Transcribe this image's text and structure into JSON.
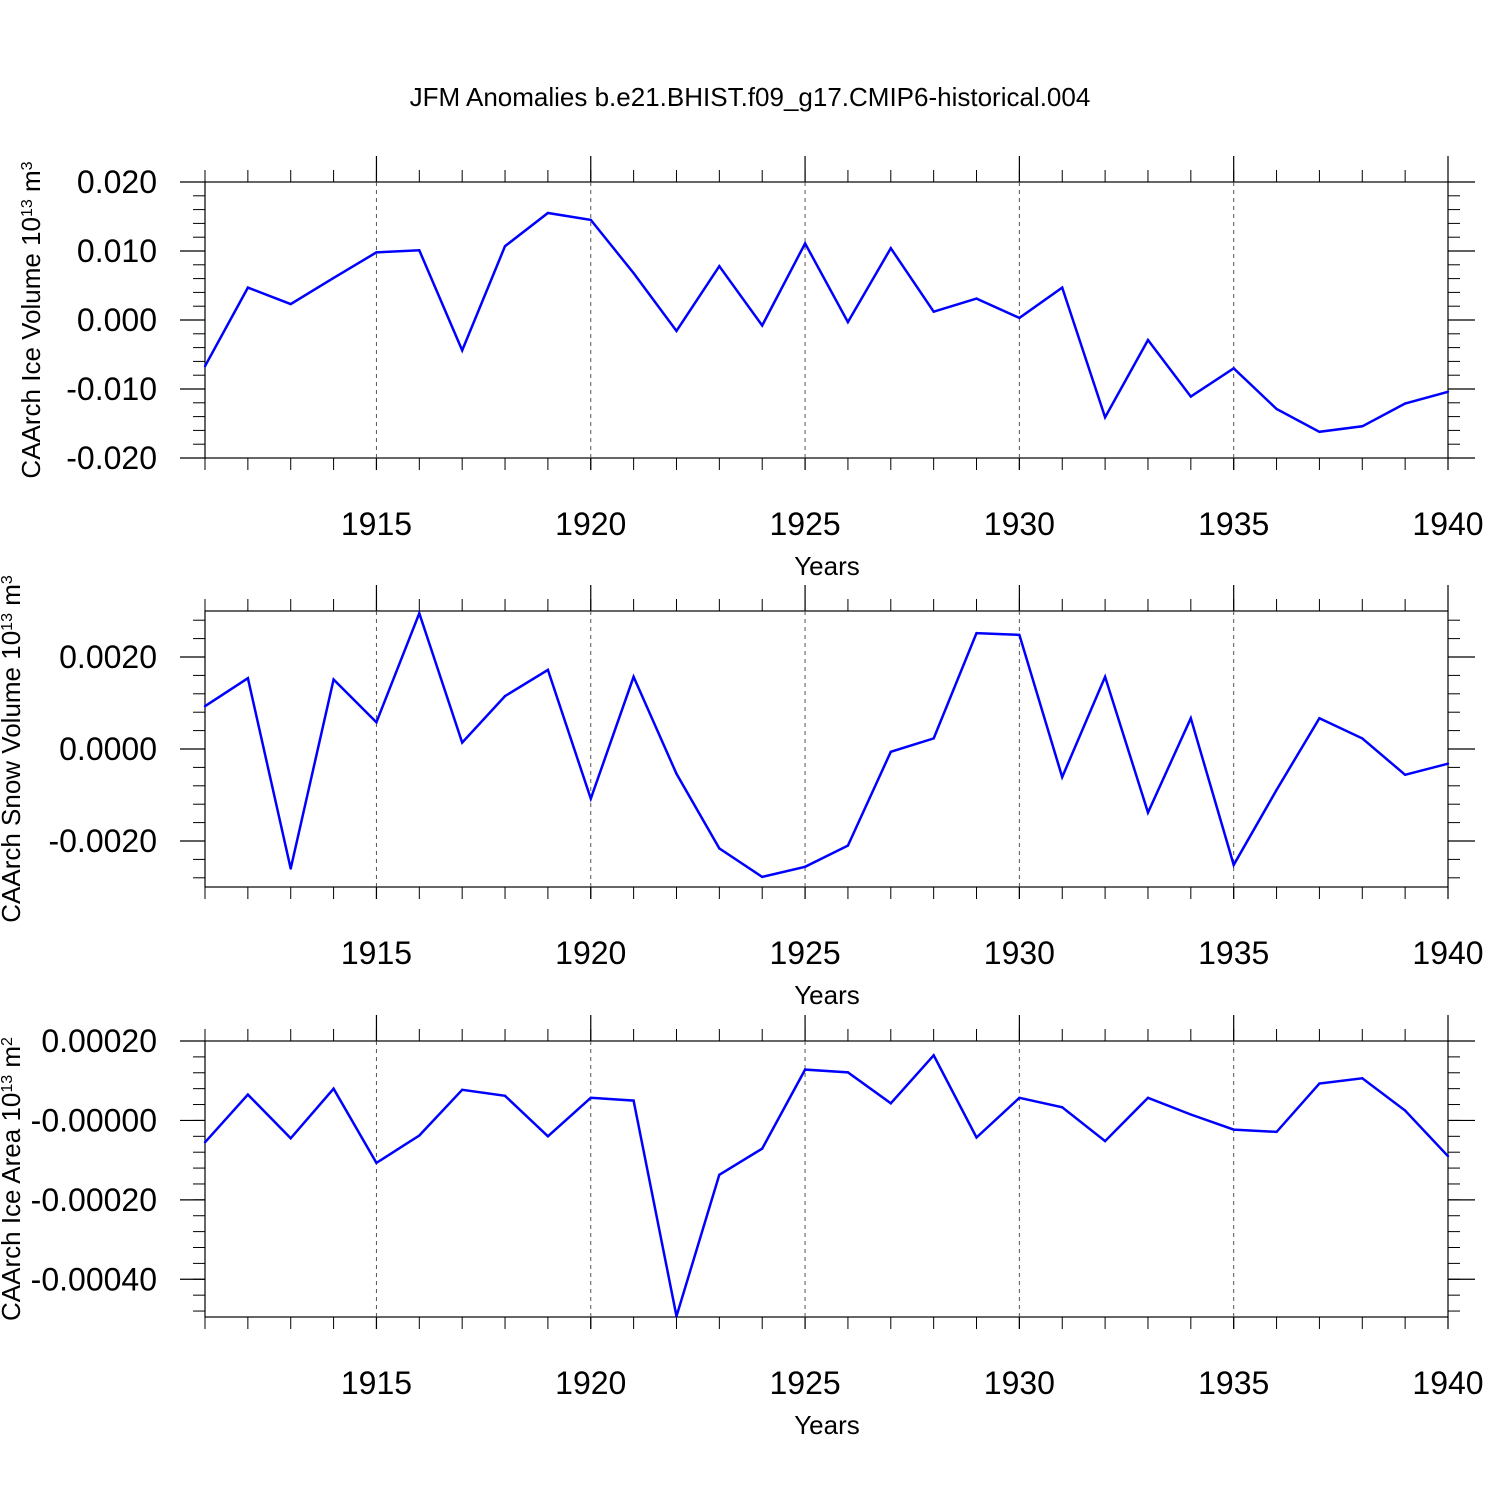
{
  "figure_title": "JFM Anomalies b.e21.BHIST.f09_g17.CMIP6-historical.004",
  "line_color": "#0000ff",
  "chart_data": [
    {
      "type": "line",
      "title": "JFM Anomalies b.e21.BHIST.f09_g17.CMIP6-historical.004",
      "xlabel": "Years",
      "ylabel": "CAArch Ice Volume 10¹³ m³",
      "xlim": [
        1911,
        1940
      ],
      "ylim": [
        -0.02,
        0.02
      ],
      "x_ticks": [
        1915,
        1920,
        1925,
        1930,
        1935,
        1940
      ],
      "y_ticks": [
        0.02,
        0.01,
        0.0,
        -0.01,
        -0.02
      ],
      "y_tick_labels": [
        "0.020",
        "0.010",
        "0.000",
        "-0.010",
        "-0.020"
      ],
      "grid": "vertical dashed at major x ticks",
      "x": [
        1911,
        1912,
        1913,
        1914,
        1915,
        1916,
        1917,
        1918,
        1919,
        1920,
        1921,
        1922,
        1923,
        1924,
        1925,
        1926,
        1927,
        1928,
        1929,
        1930,
        1931,
        1932,
        1933,
        1934,
        1935,
        1936,
        1937,
        1938,
        1939,
        1940
      ],
      "values": [
        -0.0067,
        0.0047,
        0.0023,
        0.0061,
        0.0098,
        0.0101,
        -0.0044,
        0.0107,
        0.0155,
        0.0145,
        0.0068,
        -0.0016,
        0.0078,
        -0.0008,
        0.0111,
        -0.0003,
        0.0104,
        0.0012,
        0.0031,
        0.0003,
        0.0047,
        -0.0141,
        -0.0029,
        -0.0111,
        -0.007,
        -0.0129,
        -0.0162,
        -0.0154,
        -0.0121,
        -0.0104
      ]
    },
    {
      "type": "line",
      "xlabel": "Years",
      "ylabel": "CAArch Snow Volume 10¹³ m³",
      "xlim": [
        1911,
        1940
      ],
      "ylim": [
        -0.003,
        0.003
      ],
      "x_ticks": [
        1915,
        1920,
        1925,
        1930,
        1935,
        1940
      ],
      "y_ticks": [
        0.002,
        0.0,
        -0.002
      ],
      "y_tick_labels": [
        "0.0020",
        "0.0000",
        "-0.0020"
      ],
      "grid": "vertical dashed at major x ticks",
      "x": [
        1911,
        1912,
        1913,
        1914,
        1915,
        1916,
        1917,
        1918,
        1919,
        1920,
        1921,
        1922,
        1923,
        1924,
        1925,
        1926,
        1927,
        1928,
        1929,
        1930,
        1931,
        1932,
        1933,
        1934,
        1935,
        1936,
        1937,
        1938,
        1939,
        1940
      ],
      "values": [
        0.00093,
        0.00154,
        -0.0026,
        0.00151,
        0.00058,
        0.00295,
        0.00014,
        0.00115,
        0.00172,
        -0.00108,
        0.00157,
        -0.00054,
        -0.00216,
        -0.00278,
        -0.00256,
        -0.0021,
        -6e-05,
        0.00023,
        0.00252,
        0.00248,
        -0.00061,
        0.00157,
        -0.00138,
        0.00067,
        -0.00252,
        -0.00089,
        0.00067,
        0.00023,
        -0.00056,
        -0.00032
      ]
    },
    {
      "type": "line",
      "xlabel": "Years",
      "ylabel": "CAArch Ice Area 10¹³ m²",
      "xlim": [
        1911,
        1940
      ],
      "ylim": [
        -0.000495,
        0.0002
      ],
      "x_ticks": [
        1915,
        1920,
        1925,
        1930,
        1935,
        1940
      ],
      "y_ticks": [
        0.0002,
        0.0,
        -0.0002,
        -0.0004
      ],
      "y_tick_labels": [
        "0.00020",
        "-0.00000",
        "-0.00020",
        "-0.00040"
      ],
      "grid": "vertical dashed at major x ticks",
      "x": [
        1911,
        1912,
        1913,
        1914,
        1915,
        1916,
        1917,
        1918,
        1919,
        1920,
        1921,
        1922,
        1923,
        1924,
        1925,
        1926,
        1927,
        1928,
        1929,
        1930,
        1931,
        1932,
        1933,
        1934,
        1935,
        1936,
        1937,
        1938,
        1939,
        1940
      ],
      "values": [
        -5.5e-05,
        6.5e-05,
        -4.5e-05,
        8e-05,
        -0.000107,
        -3.8e-05,
        7.7e-05,
        6.2e-05,
        -4e-05,
        5.7e-05,
        5e-05,
        -0.000493,
        -0.000137,
        -7.1e-05,
        0.000128,
        0.000121,
        4.3e-05,
        0.000164,
        -4.3e-05,
        5.7e-05,
        3.3e-05,
        -5.2e-05,
        5.7e-05,
        1.5e-05,
        -2.3e-05,
        -2.9e-05,
        9.3e-05,
        0.000106,
        2.5e-05,
        -9e-05
      ]
    }
  ]
}
